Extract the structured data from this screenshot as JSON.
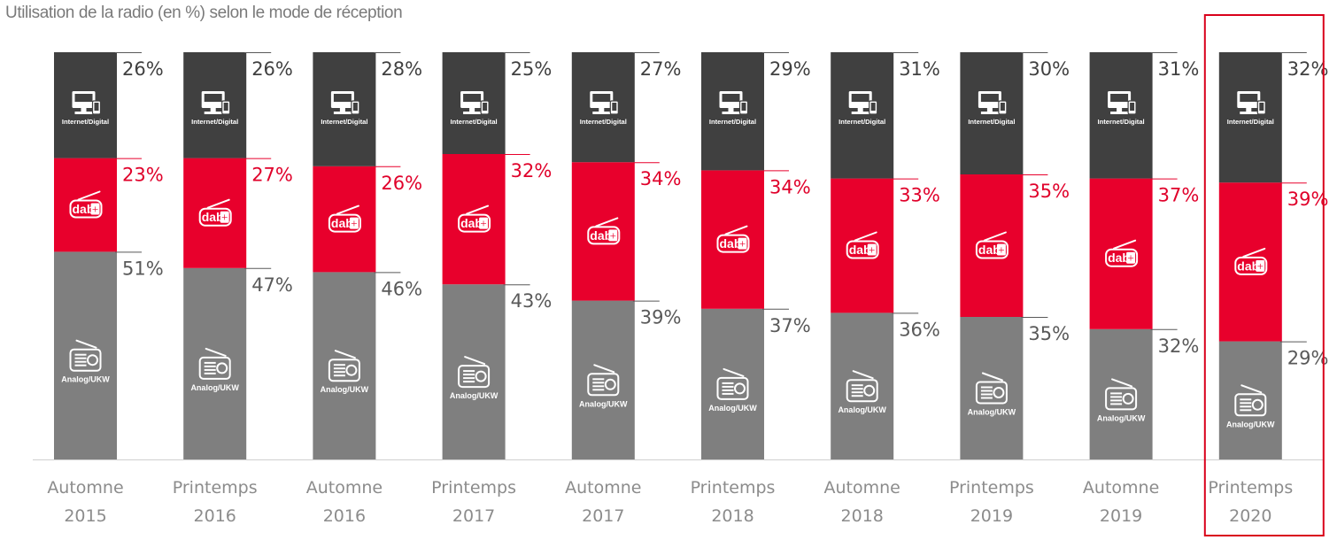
{
  "title": "Utilisation de la radio (en %) selon le mode de réception",
  "segment_labels": {
    "internet": "Internet/Digital",
    "dab": "dab",
    "dab_plus": "+",
    "analog": "Analog/UKW"
  },
  "icons": {
    "internet": "computer-monitor-icon",
    "dab": "dab-plus-radio-icon",
    "analog": "analog-radio-icon"
  },
  "chart_data": {
    "type": "bar",
    "stacked": true,
    "normalized": true,
    "categories": [
      [
        "Automne",
        "2015"
      ],
      [
        "Printemps",
        "2016"
      ],
      [
        "Automne",
        "2016"
      ],
      [
        "Printemps",
        "2017"
      ],
      [
        "Automne",
        "2017"
      ],
      [
        "Printemps",
        "2018"
      ],
      [
        "Automne",
        "2018"
      ],
      [
        "Printemps",
        "2019"
      ],
      [
        "Automne",
        "2019"
      ],
      [
        "Printemps",
        "2020"
      ]
    ],
    "series": [
      {
        "name": "Analog/UKW",
        "color": "#7f7f7f",
        "label_color": "#595959",
        "values": [
          51,
          47,
          46,
          43,
          39,
          37,
          36,
          35,
          32,
          29
        ]
      },
      {
        "name": "dab+",
        "color": "#e8002c",
        "label_color": "#e0002a",
        "values": [
          23,
          27,
          26,
          32,
          34,
          34,
          33,
          35,
          37,
          39
        ]
      },
      {
        "name": "Internet/Digital",
        "color": "#404040",
        "label_color": "#404040",
        "values": [
          26,
          26,
          28,
          25,
          27,
          29,
          31,
          30,
          31,
          32
        ]
      }
    ],
    "value_suffix": "%",
    "highlight_category_index": 9,
    "highlight_color": "#d9001b",
    "axis_color": "#d0d0d0",
    "grid": false,
    "legend": "none"
  }
}
